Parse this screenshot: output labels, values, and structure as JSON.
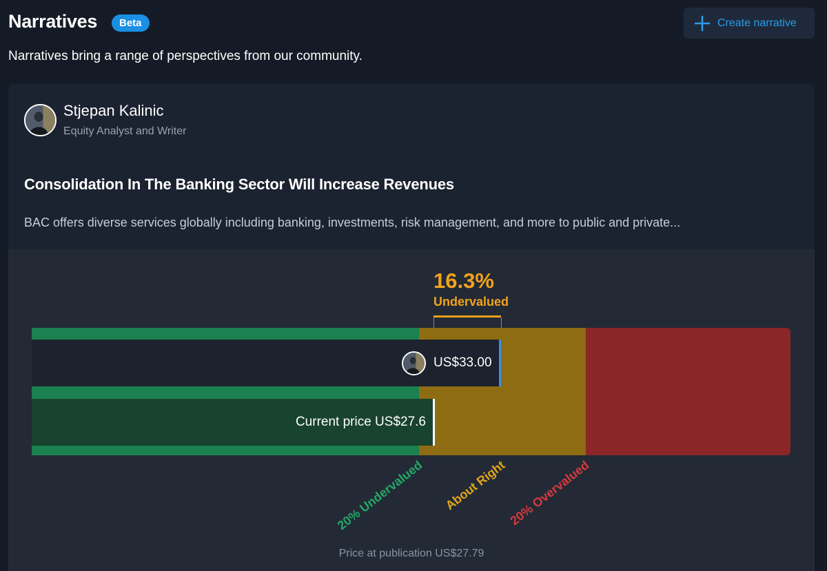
{
  "header": {
    "title": "Narratives",
    "badge": "Beta",
    "create_button": "Create narrative",
    "subtitle": "Narratives bring a range of perspectives from our community."
  },
  "narrative": {
    "author": {
      "name": "Stjepan Kalinic",
      "role": "Equity Analyst and Writer"
    },
    "headline": "Consolidation In The Banking Sector Will Increase Revenues",
    "summary": "BAC offers diverse services globally including banking, investments, risk management, and more to public and private...",
    "valuation": {
      "percent": "16.3%",
      "status": "Undervalued",
      "fair_value": "US$33.00",
      "current_price": "Current price US$27.6",
      "zones": {
        "undervalued": "20% Undervalued",
        "about_right": "About Right",
        "overvalued": "20% Overvalued"
      },
      "publication_price": "Price at publication US$27.79"
    }
  },
  "colors": {
    "accent": "#2d9be8",
    "badge": "#1a8fe3",
    "undervalued": "#1b8150",
    "about_right": "#8e6c11",
    "overvalued": "#8b2628",
    "highlight": "#f2a21b"
  },
  "icons": {
    "create": "plus-icon",
    "author": "avatar"
  }
}
